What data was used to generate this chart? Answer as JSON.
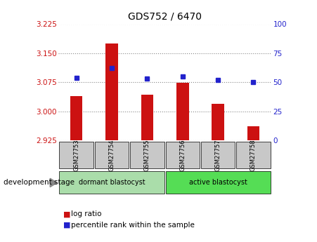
{
  "title": "GDS752 / 6470",
  "samples": [
    "GSM27753",
    "GSM27754",
    "GSM27755",
    "GSM27756",
    "GSM27757",
    "GSM27758"
  ],
  "log_ratio": [
    3.04,
    3.175,
    3.043,
    3.073,
    3.02,
    2.962
  ],
  "percentile_rank": [
    54,
    62,
    53,
    55,
    52,
    50
  ],
  "ylim_left": [
    2.925,
    3.225
  ],
  "ylim_right": [
    0,
    100
  ],
  "yticks_left": [
    2.925,
    3.0,
    3.075,
    3.15,
    3.225
  ],
  "yticks_right": [
    0,
    25,
    50,
    75,
    100
  ],
  "bar_color": "#cc1111",
  "dot_color": "#2222cc",
  "bar_bottom": 2.925,
  "group_box_color": "#c8c8c8",
  "dormant_color": "#aaddaa",
  "active_color": "#55dd55",
  "dev_stage_label": "development stage",
  "legend_log_ratio": "log ratio",
  "legend_percentile": "percentile rank within the sample",
  "grid_color": "#888888",
  "background_color": "#ffffff",
  "tick_label_color_left": "#cc1111",
  "tick_label_color_right": "#2222cc"
}
